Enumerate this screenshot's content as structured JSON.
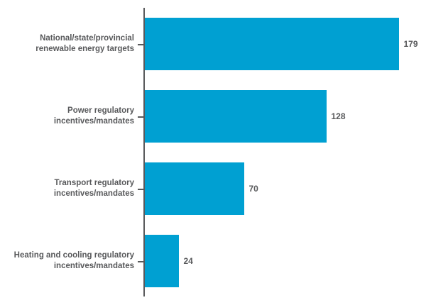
{
  "chart_data": {
    "type": "bar",
    "orientation": "horizontal",
    "title": "",
    "xlabel": "",
    "ylabel": "",
    "grid": false,
    "legend": null,
    "xlim": [
      0,
      199
    ],
    "categories": [
      "National/state/provincial renewable energy targets",
      "Power regulatory incentives/mandates",
      "Transport regulatory incentives/mandates",
      "Heating and cooling regulatory incentives/mandates"
    ],
    "category_label_lines": [
      [
        "National/state/provincial",
        "renewable energy targets"
      ],
      [
        "Power regulatory",
        "incentives/mandates"
      ],
      [
        "Transport regulatory",
        "incentives/mandates"
      ],
      [
        "Heating and cooling regulatory",
        "incentives/mandates"
      ]
    ],
    "values": [
      179,
      128,
      70,
      24
    ],
    "value_labels": [
      "179",
      "128",
      "70",
      "24"
    ],
    "colors": {
      "bar": "#00a0d2",
      "axis": "#58595b",
      "text": "#58595b",
      "background": "#ffffff"
    }
  }
}
